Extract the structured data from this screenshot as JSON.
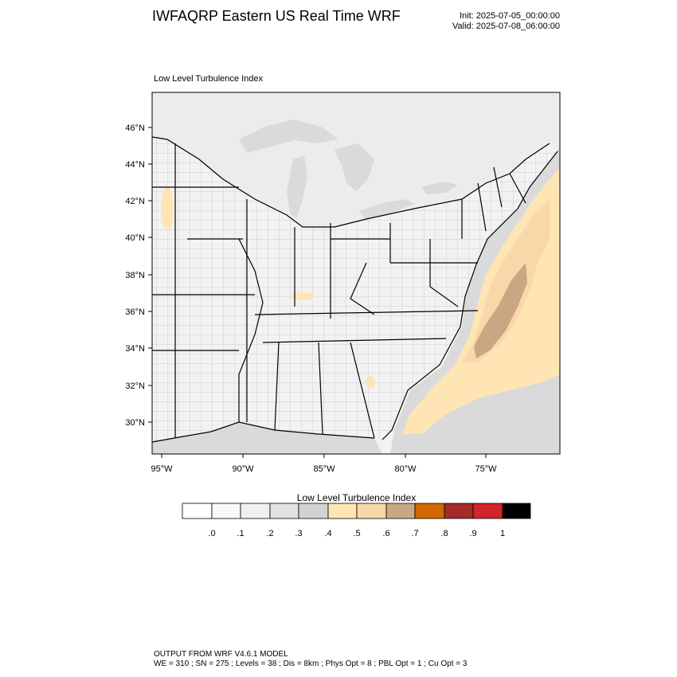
{
  "header": {
    "title": "IWFAQRP Eastern US Real Time WRF",
    "init": "Init: 2025-07-05_00:00:00",
    "valid": "Valid: 2025-07-08_06:00:00"
  },
  "map": {
    "panel_title": "Low Level Turbulence Index",
    "lat_labels": [
      "46°N",
      "44°N",
      "42°N",
      "40°N",
      "38°N",
      "36°N",
      "34°N",
      "32°N",
      "30°N"
    ],
    "lon_labels": [
      "95°W",
      "90°W",
      "85°W",
      "80°W",
      "75°W"
    ],
    "colors": {
      "land_low": "#f2f2f2",
      "land_mid": "#e0e0e0",
      "water_low": "#ececec",
      "sea_mid": "#dadada",
      "turb_light": "#ffe5b4",
      "turb_med": "#f8d7a8",
      "turb_high": "#caa682"
    }
  },
  "colorbar": {
    "title": "Low Level Turbulence Index",
    "colors": [
      "#ffffff",
      "#f9f9f9",
      "#f0f0f0",
      "#e2e2e2",
      "#d3d3d3",
      "#ffe5b4",
      "#f8d7a8",
      "#caa682",
      "#d16800",
      "#a52a2a",
      "#d2232a",
      "#000000"
    ],
    "labels": [
      ".0",
      ".1",
      ".2",
      ".3",
      ".4",
      ".5",
      ".6",
      ".7",
      ".8",
      ".9",
      "1"
    ]
  },
  "footer": {
    "line1": "OUTPUT FROM WRF V4.6.1 MODEL",
    "line2": "WE = 310 ; SN = 275 ; Levels = 38 ; Dis = 8km ; Phys Opt = 8 ; PBL Opt = 1 ; Cu Opt = 3"
  }
}
